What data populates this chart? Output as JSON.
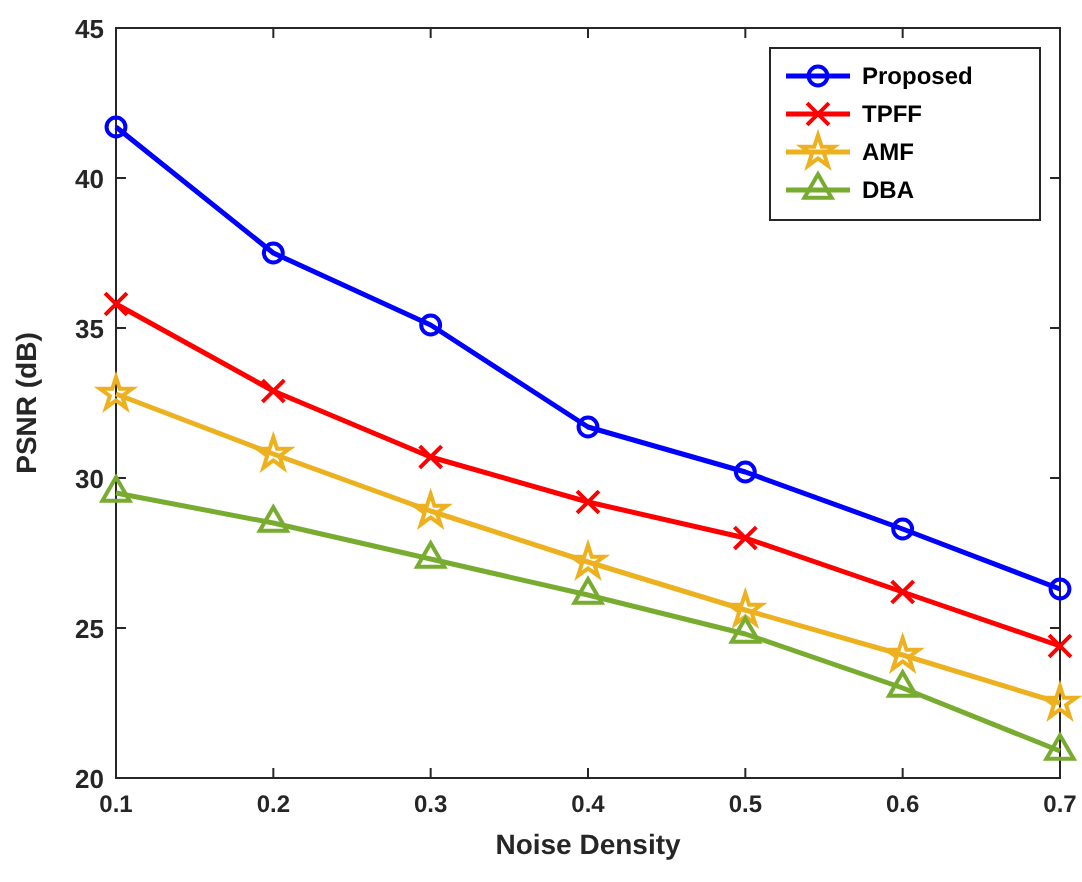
{
  "chart_data": {
    "type": "line",
    "xlabel": "Noise Density",
    "ylabel": "PSNR (dB)",
    "x": [
      0.1,
      0.2,
      0.3,
      0.4,
      0.5,
      0.6,
      0.7
    ],
    "xlim": [
      0.1,
      0.7
    ],
    "xticks": [
      0.1,
      0.2,
      0.3,
      0.4,
      0.5,
      0.6,
      0.7
    ],
    "ylim": [
      20,
      45
    ],
    "yticks": [
      20,
      25,
      30,
      35,
      40,
      45
    ],
    "grid": false,
    "legend": "top right",
    "line_style": "solid",
    "series": [
      {
        "name": "Proposed",
        "color": "#0000ff",
        "marker": "circle",
        "values": [
          41.7,
          37.5,
          35.1,
          31.7,
          30.2,
          28.3,
          26.3
        ]
      },
      {
        "name": "TPFF",
        "color": "#ff0000",
        "marker": "cross",
        "values": [
          35.8,
          32.9,
          30.7,
          29.2,
          28.0,
          26.2,
          24.4
        ]
      },
      {
        "name": "AMF",
        "color": "#edb120",
        "marker": "star",
        "values": [
          32.8,
          30.8,
          28.9,
          27.2,
          25.6,
          24.1,
          22.5
        ]
      },
      {
        "name": "DBA",
        "color": "#77ac30",
        "marker": "triangle",
        "values": [
          29.5,
          28.5,
          27.3,
          26.1,
          24.8,
          23.0,
          20.9
        ]
      }
    ]
  }
}
